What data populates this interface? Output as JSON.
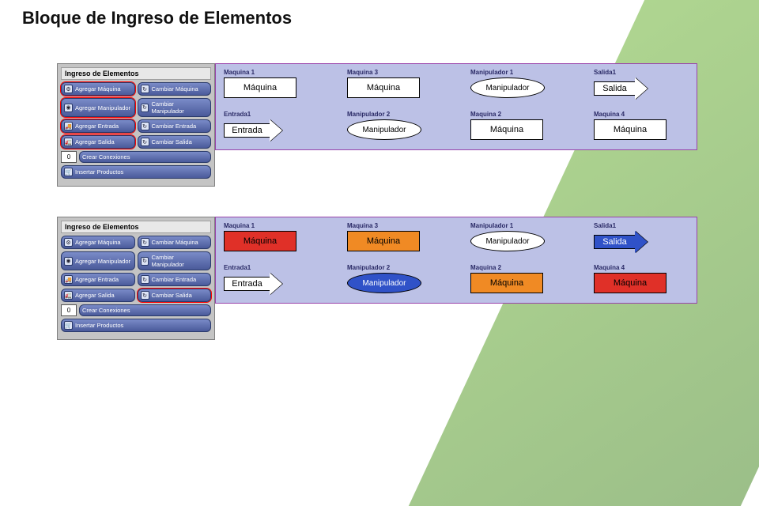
{
  "title": "Bloque de Ingreso de Elementos",
  "colors": {
    "background_canvas": "#bcc1e6",
    "toolbox_bg": "#c4c4c4",
    "btn_grad_from": "#7a8bc8",
    "btn_grad_to": "#4a5a9a",
    "deco_green_from": "#6fb536",
    "deco_green_to": "#4a8a28",
    "red": "#e03028",
    "orange": "#f08a24",
    "blue": "#3052c8",
    "white": "#ffffff"
  },
  "toolbox": {
    "title": "Ingreso de Elementos",
    "rows": [
      {
        "left": "Agregar Máquina",
        "right": "Cambiar Máquina",
        "left_icon": "⚙",
        "right_icon": "↻"
      },
      {
        "left": "Agregar Manipulador",
        "right": "Cambiar Manipulador",
        "left_icon": "◉",
        "right_icon": "↻"
      },
      {
        "left": "Agregar Entrada",
        "right": "Cambiar Entrada",
        "left_icon": "🚚",
        "right_icon": "↻"
      },
      {
        "left": "Agregar Salida",
        "right": "Cambiar Salida",
        "left_icon": "🚛",
        "right_icon": "↻"
      }
    ],
    "count": "0",
    "conn": "Crear Conexiones",
    "insert": "Insertar Productos",
    "insert_icon": "🛒"
  },
  "rows": [
    {
      "highlight_left": true,
      "highlight_right": null,
      "cells": [
        {
          "cap": "Maquina 1",
          "type": "machine",
          "label": "Máquina",
          "color": "white"
        },
        {
          "cap": "Maquina 3",
          "type": "machine",
          "label": "Máquina",
          "color": "white"
        },
        {
          "cap": "Manipulador 1",
          "type": "oval",
          "label": "Manipulador",
          "color": "white"
        },
        {
          "cap": "Salida1",
          "type": "exit",
          "label": "Salida",
          "color": "white"
        },
        {
          "cap": "Entrada1",
          "type": "entry",
          "label": "Entrada",
          "color": "white"
        },
        {
          "cap": "Manipulador 2",
          "type": "oval",
          "label": "Manipulador",
          "color": "white"
        },
        {
          "cap": "Maquina 2",
          "type": "machine",
          "label": "Máquina",
          "color": "white"
        },
        {
          "cap": "Maquina 4",
          "type": "machine",
          "label": "Máquina",
          "color": "white"
        }
      ]
    },
    {
      "highlight_left": false,
      "highlight_right": 3,
      "cells": [
        {
          "cap": "Maquina 1",
          "type": "machine",
          "label": "Máquina",
          "color": "red"
        },
        {
          "cap": "Maquina 3",
          "type": "machine",
          "label": "Máquina",
          "color": "orange"
        },
        {
          "cap": "Manipulador 1",
          "type": "oval",
          "label": "Manipulador",
          "color": "white"
        },
        {
          "cap": "Salida1",
          "type": "exit",
          "label": "Salida",
          "color": "blue"
        },
        {
          "cap": "Entrada1",
          "type": "entry",
          "label": "Entrada",
          "color": "white"
        },
        {
          "cap": "Manipulador 2",
          "type": "oval",
          "label": "Manipulador",
          "color": "blue"
        },
        {
          "cap": "Maquina 2",
          "type": "machine",
          "label": "Máquina",
          "color": "orange"
        },
        {
          "cap": "Maquina 4",
          "type": "machine",
          "label": "Máquina",
          "color": "red"
        }
      ]
    }
  ]
}
